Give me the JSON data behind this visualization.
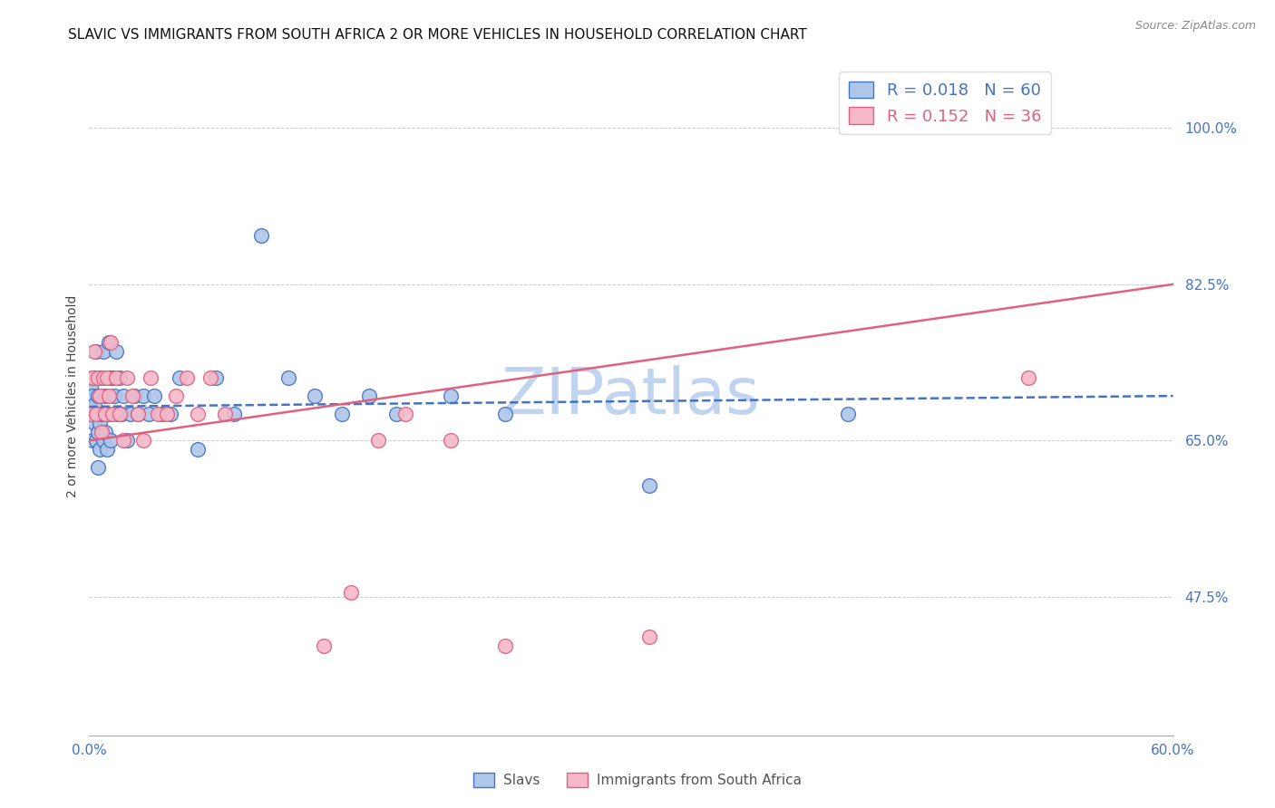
{
  "title": "SLAVIC VS IMMIGRANTS FROM SOUTH AFRICA 2 OR MORE VEHICLES IN HOUSEHOLD CORRELATION CHART",
  "source": "Source: ZipAtlas.com",
  "ylabel": "2 or more Vehicles in Household",
  "xlabel_slavs": "Slavs",
  "xlabel_immigrants": "Immigrants from South Africa",
  "watermark": "ZIPatlas",
  "legend_slavs_R": "R = 0.018",
  "legend_slavs_N": "N = 60",
  "legend_immigrants_R": "R = 0.152",
  "legend_immigrants_N": "N = 36",
  "xlim": [
    0.0,
    0.6
  ],
  "ylim": [
    0.32,
    1.08
  ],
  "ytick_positions": [
    0.475,
    0.65,
    0.825,
    1.0
  ],
  "ytick_labels": [
    "47.5%",
    "65.0%",
    "82.5%",
    "100.0%"
  ],
  "xtick_positions": [
    0.0,
    0.6
  ],
  "xtick_labels": [
    "0.0%",
    "60.0%"
  ],
  "grid_yticks": [
    0.475,
    0.65,
    0.825,
    1.0
  ],
  "color_slavs": "#aec6e8",
  "color_immigrants": "#f4b8c8",
  "line_color_slavs": "#4472c4",
  "line_color_immigrants": "#e06080",
  "background": "#ffffff",
  "slavs_x": [
    0.001,
    0.001,
    0.002,
    0.002,
    0.002,
    0.003,
    0.003,
    0.003,
    0.004,
    0.004,
    0.004,
    0.005,
    0.005,
    0.005,
    0.006,
    0.006,
    0.006,
    0.007,
    0.007,
    0.008,
    0.008,
    0.008,
    0.009,
    0.009,
    0.01,
    0.01,
    0.011,
    0.011,
    0.012,
    0.013,
    0.013,
    0.014,
    0.015,
    0.016,
    0.017,
    0.018,
    0.019,
    0.021,
    0.023,
    0.025,
    0.027,
    0.03,
    0.033,
    0.036,
    0.04,
    0.045,
    0.05,
    0.06,
    0.07,
    0.08,
    0.095,
    0.11,
    0.125,
    0.14,
    0.155,
    0.17,
    0.2,
    0.23,
    0.31,
    0.42
  ],
  "slavs_y": [
    0.68,
    0.71,
    0.65,
    0.7,
    0.72,
    0.67,
    0.69,
    0.72,
    0.65,
    0.68,
    0.75,
    0.62,
    0.66,
    0.7,
    0.64,
    0.67,
    0.72,
    0.68,
    0.72,
    0.65,
    0.68,
    0.75,
    0.66,
    0.7,
    0.64,
    0.68,
    0.72,
    0.76,
    0.65,
    0.68,
    0.72,
    0.7,
    0.75,
    0.68,
    0.72,
    0.68,
    0.7,
    0.65,
    0.68,
    0.7,
    0.68,
    0.7,
    0.68,
    0.7,
    0.68,
    0.68,
    0.72,
    0.64,
    0.72,
    0.68,
    0.88,
    0.72,
    0.7,
    0.68,
    0.7,
    0.68,
    0.7,
    0.68,
    0.6,
    0.68
  ],
  "immigrants_x": [
    0.001,
    0.002,
    0.003,
    0.004,
    0.005,
    0.006,
    0.007,
    0.008,
    0.009,
    0.01,
    0.011,
    0.012,
    0.013,
    0.015,
    0.017,
    0.019,
    0.021,
    0.024,
    0.027,
    0.03,
    0.034,
    0.038,
    0.043,
    0.048,
    0.054,
    0.06,
    0.067,
    0.075,
    0.13,
    0.145,
    0.16,
    0.175,
    0.2,
    0.23,
    0.31,
    0.52
  ],
  "immigrants_y": [
    0.68,
    0.72,
    0.75,
    0.68,
    0.72,
    0.7,
    0.66,
    0.72,
    0.68,
    0.72,
    0.7,
    0.76,
    0.68,
    0.72,
    0.68,
    0.65,
    0.72,
    0.7,
    0.68,
    0.65,
    0.72,
    0.68,
    0.68,
    0.7,
    0.72,
    0.68,
    0.72,
    0.68,
    0.42,
    0.48,
    0.65,
    0.68,
    0.65,
    0.42,
    0.43,
    0.72
  ],
  "slavs_size": 130,
  "immigrants_size": 130,
  "title_fontsize": 11,
  "axis_label_fontsize": 10,
  "tick_fontsize": 11,
  "legend_fontsize": 13,
  "watermark_fontsize": 52,
  "watermark_color": "#c0d4f0",
  "axis_color": "#4472c4",
  "source_color": "#888888"
}
